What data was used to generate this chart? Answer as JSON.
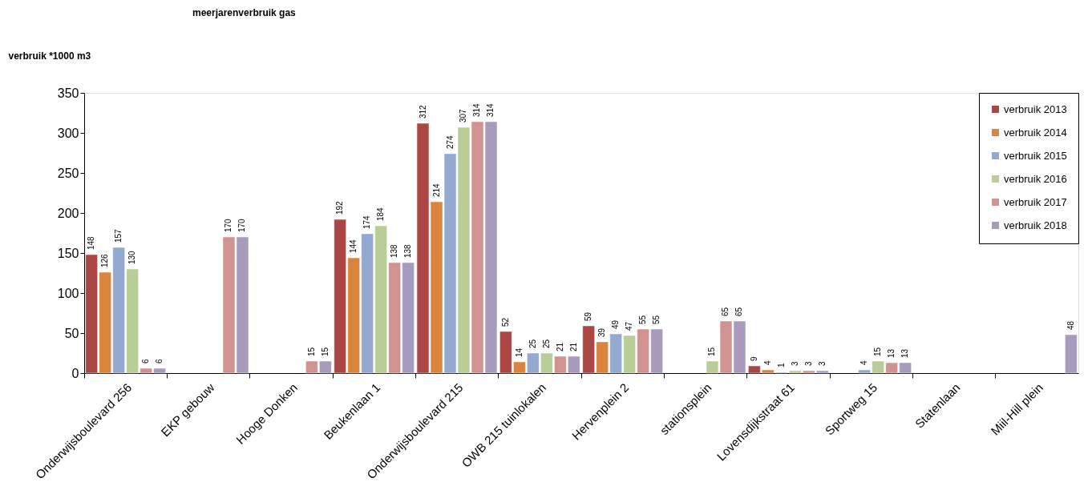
{
  "chart_data": {
    "type": "bar",
    "title": "meerjarenverbruik gas",
    "ylabel": "verbruik *1000 m3",
    "categories": [
      "Onderwijsboulevard 256",
      "EKP gebouw",
      "Hooge Donken",
      "Beukenlaan 1",
      "Onderwijsboulevard 215",
      "OWB 215 tuinlokalen",
      "Hervenplein 2",
      "stationsplein",
      "Lovensdijkstraat 61",
      "Sportweg 15",
      "Statenlaan",
      "Miil-Hill plein"
    ],
    "series": [
      {
        "name": "verbruik 2013",
        "color": "#aa4643",
        "values": [
          148,
          null,
          null,
          192,
          312,
          52,
          59,
          null,
          9,
          null,
          null,
          null
        ]
      },
      {
        "name": "verbruik 2014",
        "color": "#db843d",
        "values": [
          126,
          null,
          null,
          144,
          214,
          14,
          39,
          null,
          4,
          null,
          null,
          null
        ]
      },
      {
        "name": "verbruik 2015",
        "color": "#93a9cf",
        "values": [
          157,
          null,
          null,
          174,
          274,
          25,
          49,
          null,
          1,
          4,
          null,
          null
        ]
      },
      {
        "name": "verbruik 2016",
        "color": "#b9cd96",
        "values": [
          130,
          null,
          null,
          184,
          307,
          25,
          47,
          15,
          3,
          15,
          null,
          null
        ]
      },
      {
        "name": "verbruik 2017",
        "color": "#d19392",
        "values": [
          6,
          170,
          15,
          138,
          314,
          21,
          55,
          65,
          3,
          13,
          null,
          null
        ]
      },
      {
        "name": "verbruik 2018",
        "color": "#a99bbd",
        "values": [
          6,
          170,
          15,
          138,
          314,
          21,
          55,
          65,
          3,
          13,
          null,
          48
        ]
      }
    ],
    "ylim": [
      0,
      350
    ],
    "yticks": [
      0,
      50,
      100,
      150,
      200,
      250,
      300,
      350
    ],
    "data_labels": true,
    "legend": "top right",
    "grid": false
  }
}
